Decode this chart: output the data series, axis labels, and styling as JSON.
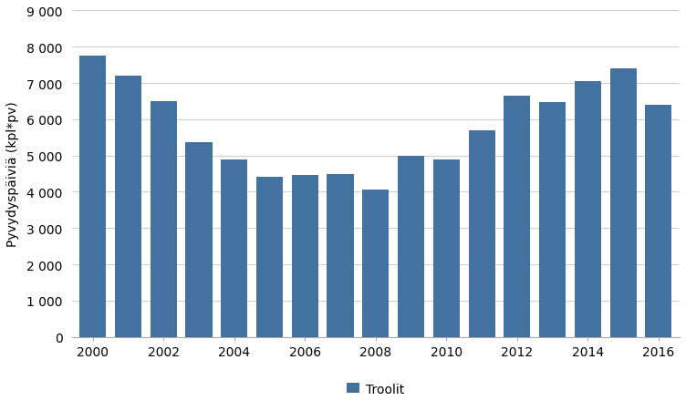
{
  "years": [
    2000,
    2001,
    2002,
    2003,
    2004,
    2005,
    2006,
    2007,
    2008,
    2009,
    2010,
    2011,
    2012,
    2013,
    2014,
    2015,
    2016
  ],
  "values": [
    7750,
    7200,
    6500,
    5380,
    4880,
    4420,
    4470,
    4500,
    4050,
    4980,
    4880,
    5700,
    6650,
    6480,
    7050,
    7400,
    6400
  ],
  "bar_color": "#4472a0",
  "ylabel": "Pyvydyspäiviä (kpl*pv)",
  "ylim": [
    0,
    9000
  ],
  "yticks": [
    0,
    1000,
    2000,
    3000,
    4000,
    5000,
    6000,
    7000,
    8000,
    9000
  ],
  "ytick_labels": [
    "0",
    "1 000",
    "2 000",
    "3 000",
    "4 000",
    "5 000",
    "6 000",
    "7 000",
    "8 000",
    "9 000"
  ],
  "xtick_labels": [
    "2000",
    "2002",
    "2004",
    "2006",
    "2008",
    "2010",
    "2012",
    "2014",
    "2016"
  ],
  "background_color": "#ffffff",
  "grid_color": "#d0d0d0",
  "legend_label": "Troolit"
}
